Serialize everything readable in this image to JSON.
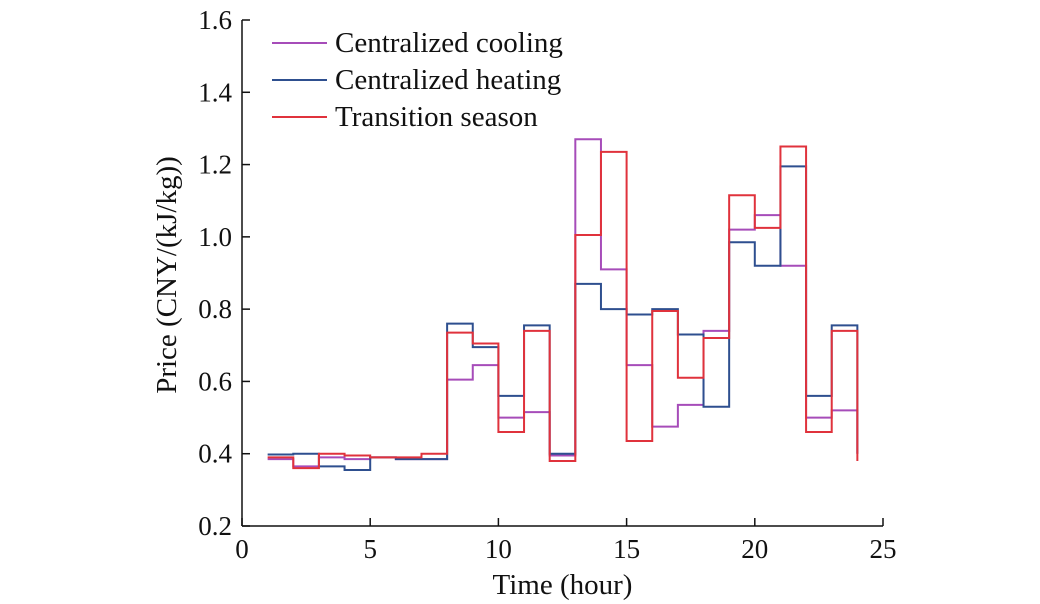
{
  "chart_data": {
    "type": "line",
    "step": true,
    "xlabel": "Time (hour)",
    "ylabel": "Price (CNY/(kJ/kg))",
    "xlim": [
      0,
      25
    ],
    "ylim": [
      0.2,
      1.6
    ],
    "xticks": [
      0,
      5,
      10,
      15,
      20,
      25
    ],
    "yticks": [
      0.2,
      0.4,
      0.6,
      0.8,
      1.0,
      1.2,
      1.4,
      1.6
    ],
    "ytick_labels": [
      "0.2",
      "0.4",
      "0.6",
      "0.8",
      "1.0",
      "1.2",
      "1.4",
      "1.6"
    ],
    "grid": false,
    "legend_position": "top-left",
    "x": [
      1,
      2,
      3,
      4,
      5,
      6,
      7,
      8,
      9,
      10,
      11,
      12,
      13,
      14,
      15,
      16,
      17,
      18,
      19,
      20,
      21,
      22,
      23,
      24
    ],
    "series": [
      {
        "name": "Centralized cooling",
        "color": "#a64cb9",
        "values": [
          0.385,
          0.365,
          0.39,
          0.385,
          0.39,
          0.385,
          0.385,
          0.605,
          0.645,
          0.5,
          0.515,
          0.395,
          1.27,
          0.91,
          0.645,
          0.475,
          0.535,
          0.74,
          1.02,
          1.06,
          0.92,
          0.5,
          0.52,
          0.4
        ]
      },
      {
        "name": "Centralized heating",
        "color": "#2e4f8f",
        "values": [
          0.398,
          0.4,
          0.365,
          0.355,
          0.39,
          0.385,
          0.385,
          0.76,
          0.695,
          0.56,
          0.755,
          0.4,
          0.87,
          0.8,
          0.785,
          0.8,
          0.73,
          0.53,
          0.985,
          0.92,
          1.195,
          0.56,
          0.755,
          0.4
        ]
      },
      {
        "name": "Transition season",
        "color": "#e0323c",
        "values": [
          0.39,
          0.36,
          0.4,
          0.395,
          0.39,
          0.39,
          0.4,
          0.735,
          0.705,
          0.46,
          0.74,
          0.38,
          1.005,
          1.235,
          0.435,
          0.795,
          0.61,
          0.72,
          1.115,
          1.025,
          1.25,
          0.46,
          0.74,
          0.38
        ]
      }
    ]
  }
}
